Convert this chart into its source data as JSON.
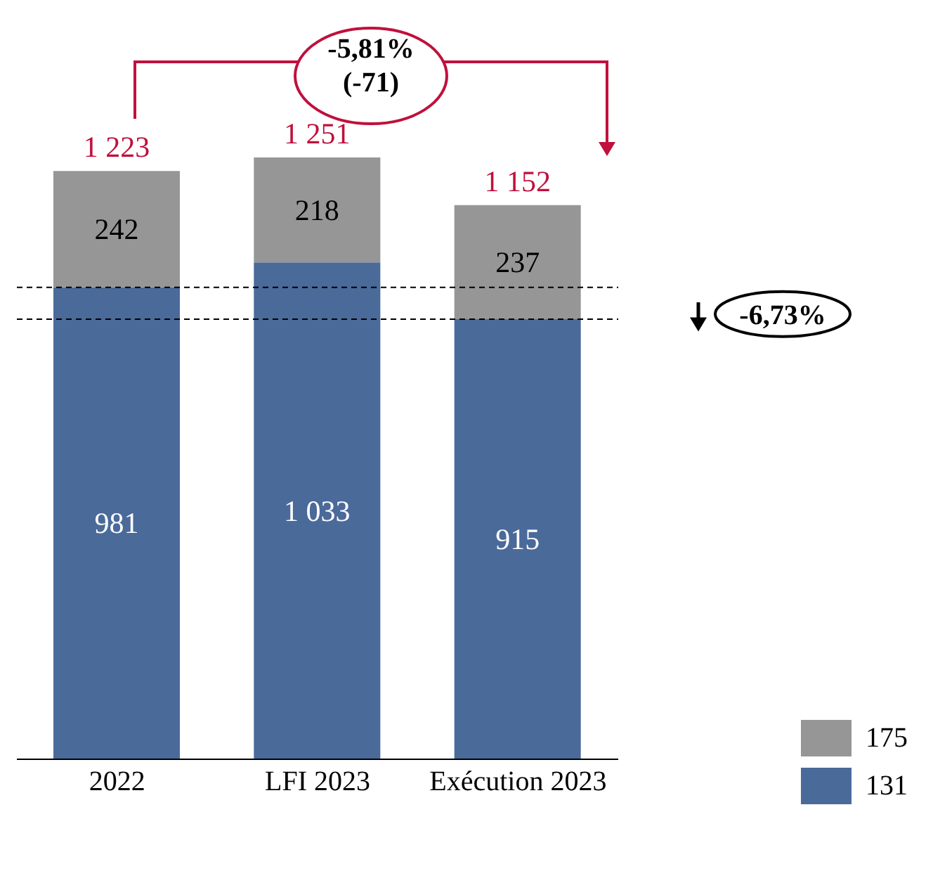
{
  "chart_data": {
    "type": "bar",
    "stacked": true,
    "categories": [
      "2022",
      "LFI 2023",
      "Exécution 2023"
    ],
    "series": [
      {
        "name": "131",
        "color": "#4a6a9a",
        "values": [
          981,
          1033,
          915
        ],
        "value_labels": [
          "981",
          "1 033",
          "915"
        ]
      },
      {
        "name": "175",
        "color": "#969696",
        "values": [
          242,
          218,
          237
        ],
        "value_labels": [
          "242",
          "218",
          "237"
        ]
      }
    ],
    "totals": [
      "1 223",
      "1 251",
      "1 152"
    ],
    "legend": "bottom right",
    "ref_lines": [
      {
        "axis": "y",
        "value": 981,
        "line_style": "dashed",
        "color": "#000000"
      },
      {
        "axis": "y",
        "value": 915,
        "line_style": "dashed",
        "color": "#000000"
      }
    ],
    "annotations": [
      "-5,81% (-71)",
      "-6,73%"
    ]
  }
}
